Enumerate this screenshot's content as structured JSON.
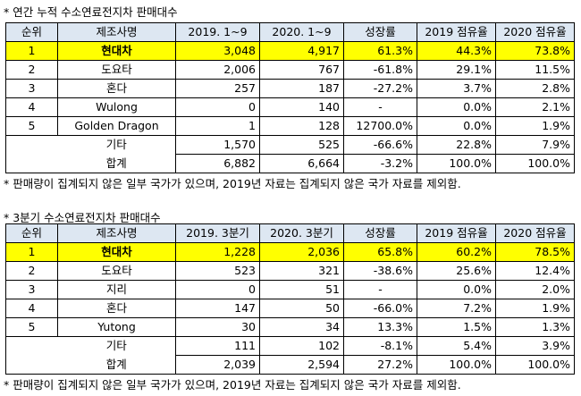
{
  "table1": {
    "title": "* 연간 누적 수소연료전지차 판매대수",
    "headers": [
      "순위",
      "제조사명",
      "2019. 1~9",
      "2020. 1~9",
      "성장률",
      "2019 점유율",
      "2020 점유율"
    ],
    "rows": [
      {
        "rank": "1",
        "maker": "현대차",
        "v2019": "3,048",
        "v2020": "4,917",
        "growth": "61.3%",
        "share2019": "44.3%",
        "share2020": "73.8%"
      },
      {
        "rank": "2",
        "maker": "도요타",
        "v2019": "2,006",
        "v2020": "767",
        "growth": "-61.8%",
        "share2019": "29.1%",
        "share2020": "11.5%"
      },
      {
        "rank": "3",
        "maker": "혼다",
        "v2019": "257",
        "v2020": "187",
        "growth": "-27.2%",
        "share2019": "3.7%",
        "share2020": "2.8%"
      },
      {
        "rank": "4",
        "maker": "Wulong",
        "v2019": "0",
        "v2020": "140",
        "growth": "-",
        "share2019": "0.0%",
        "share2020": "2.1%"
      },
      {
        "rank": "5",
        "maker": "Golden Dragon",
        "v2019": "1",
        "v2020": "128",
        "growth": "12700.0%",
        "share2019": "0.0%",
        "share2020": "1.9%"
      }
    ],
    "other": {
      "label": "기타",
      "v2019": "1,570",
      "v2020": "525",
      "growth": "-66.6%",
      "share2019": "22.8%",
      "share2020": "7.9%"
    },
    "total": {
      "label": "합계",
      "v2019": "6,882",
      "v2020": "6,664",
      "growth": "-3.2%",
      "share2019": "100.0%",
      "share2020": "100.0%"
    },
    "note": "* 판매량이 집계되지 않은 일부 국가가 있으며, 2019년 자료는 집계되지 않은 국가 자료를 제외함."
  },
  "table2": {
    "title": "* 3분기 수소연료전지차 판매대수",
    "headers": [
      "순위",
      "제조사명",
      "2019. 3분기",
      "2020. 3분기",
      "성장률",
      "2019 점유율",
      "2020 점유율"
    ],
    "rows": [
      {
        "rank": "1",
        "maker": "현대차",
        "v2019": "1,228",
        "v2020": "2,036",
        "growth": "65.8%",
        "share2019": "60.2%",
        "share2020": "78.5%"
      },
      {
        "rank": "2",
        "maker": "도요타",
        "v2019": "523",
        "v2020": "321",
        "growth": "-38.6%",
        "share2019": "25.6%",
        "share2020": "12.4%"
      },
      {
        "rank": "3",
        "maker": "지리",
        "v2019": "0",
        "v2020": "51",
        "growth": "-",
        "share2019": "0.0%",
        "share2020": "2.0%"
      },
      {
        "rank": "4",
        "maker": "혼다",
        "v2019": "147",
        "v2020": "50",
        "growth": "-66.0%",
        "share2019": "7.2%",
        "share2020": "1.9%"
      },
      {
        "rank": "5",
        "maker": "Yutong",
        "v2019": "30",
        "v2020": "34",
        "growth": "13.3%",
        "share2019": "1.5%",
        "share2020": "1.3%"
      }
    ],
    "other": {
      "label": "기타",
      "v2019": "111",
      "v2020": "102",
      "growth": "-8.1%",
      "share2019": "5.4%",
      "share2020": "3.9%"
    },
    "total": {
      "label": "합계",
      "v2019": "2,039",
      "v2020": "2,594",
      "growth": "27.2%",
      "share2019": "100.0%",
      "share2020": "100.0%"
    },
    "note": "* 판매량이 집계되지 않은 일부 국가가 있으며, 2019년 자료는 집계되지 않은 국가 자료를 제외함."
  },
  "colors": {
    "header_bg": "#dde7f2",
    "highlight_bg": "#ffff00",
    "border": "#000000"
  }
}
